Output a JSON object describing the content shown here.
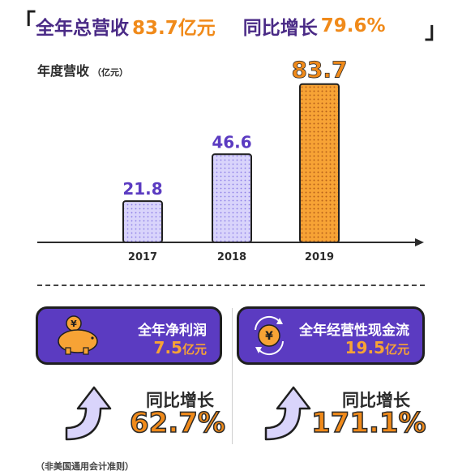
{
  "headline": {
    "total_label": "全年总营收",
    "total_value": "83.7亿元",
    "growth_label": "同比增长",
    "growth_value": "79.6%"
  },
  "chart_data": {
    "type": "bar",
    "title": "年度营收",
    "unit": "（亿元）",
    "categories": [
      "2017",
      "2018",
      "2019"
    ],
    "values": [
      21.8,
      46.6,
      83.7
    ],
    "value_labels": [
      "21.8",
      "46.6",
      "83.7"
    ],
    "ylim": [
      0,
      90
    ],
    "grid": false,
    "colors": [
      "#d9d4fb",
      "#d9d4fb",
      "#f7a335"
    ],
    "label_colors": [
      "#5b3bc1",
      "#5b3bc1",
      "#f08a1a"
    ]
  },
  "cards": {
    "net_profit": {
      "label": "全年净利润",
      "value": "7.5",
      "unit": "亿元",
      "icon": "piggy-bank-icon",
      "yoy_label": "同比增长",
      "yoy_value": "62.7%"
    },
    "cash_flow": {
      "label": "全年经营性现金流",
      "value": "19.5",
      "unit": "亿元",
      "icon": "yuan-coin-icon",
      "yoy_label": "同比增长",
      "yoy_value": "171.1%"
    }
  },
  "icon_text": {
    "yuan": "¥"
  },
  "footnote": "（非美国通用会计准则）"
}
